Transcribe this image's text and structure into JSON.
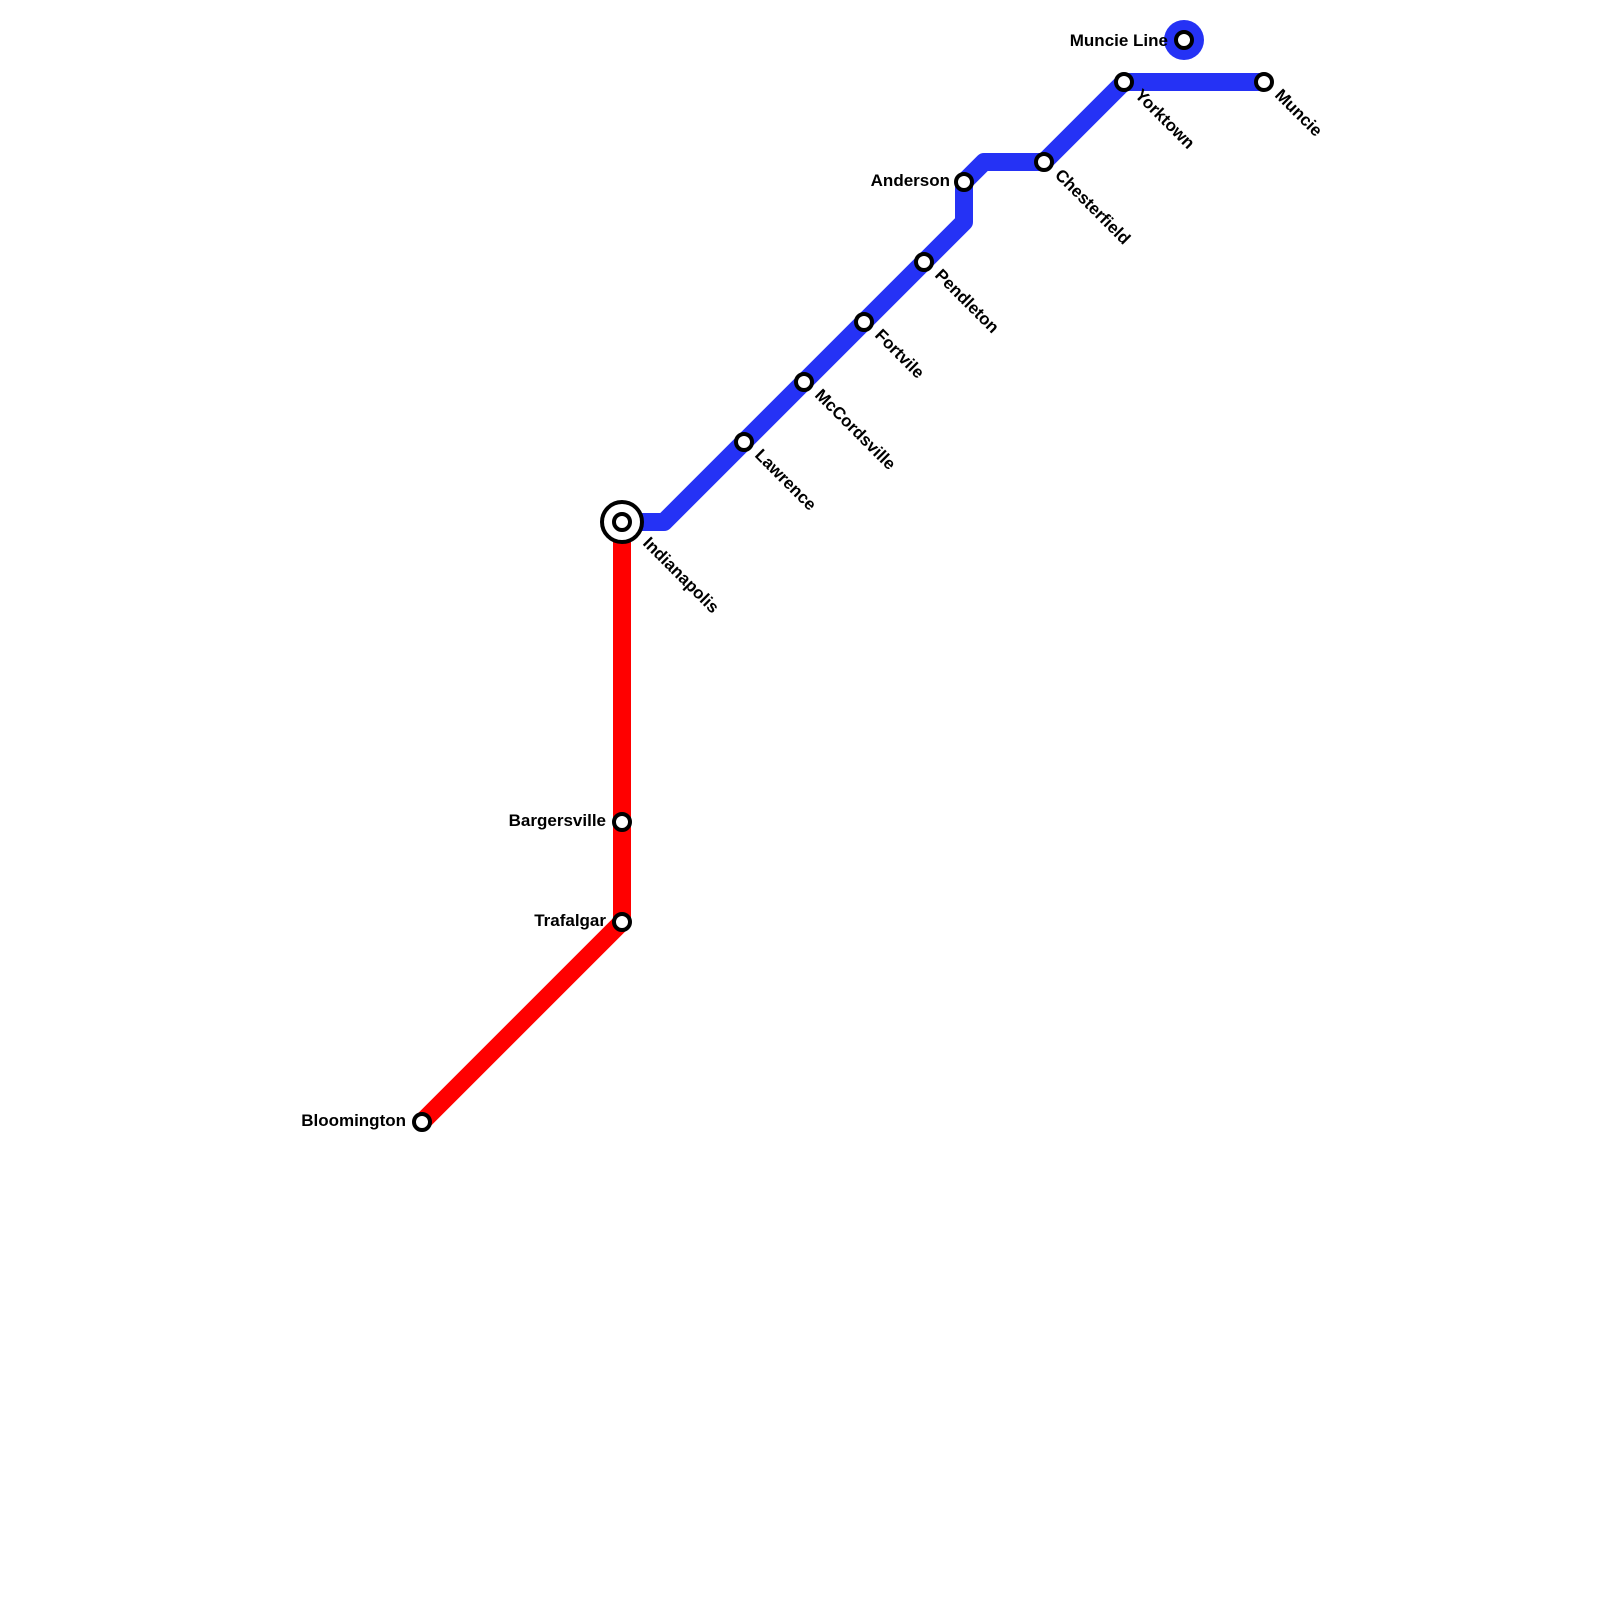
{
  "map": {
    "lines": [
      {
        "id": "muncie",
        "color": "#2532f5"
      },
      {
        "id": "bloomington",
        "color": "#ff0000"
      }
    ],
    "legend": {
      "label": "Muncie Line",
      "color": "#2532f5"
    },
    "stations": [
      {
        "id": "indianapolis",
        "name": "Indianapolis",
        "interchange": true
      },
      {
        "id": "lawrence",
        "name": "Lawrence"
      },
      {
        "id": "mccordsville",
        "name": "McCordsville"
      },
      {
        "id": "fortvile",
        "name": "Fortvile"
      },
      {
        "id": "pendleton",
        "name": "Pendleton"
      },
      {
        "id": "anderson",
        "name": "Anderson"
      },
      {
        "id": "chesterfield",
        "name": "Chesterfield"
      },
      {
        "id": "yorktown",
        "name": "Yorktown"
      },
      {
        "id": "muncie",
        "name": "Muncie"
      },
      {
        "id": "bargersville",
        "name": "Bargersville"
      },
      {
        "id": "trafalgar",
        "name": "Trafalgar"
      },
      {
        "id": "bloomington",
        "name": "Bloomington"
      }
    ]
  }
}
